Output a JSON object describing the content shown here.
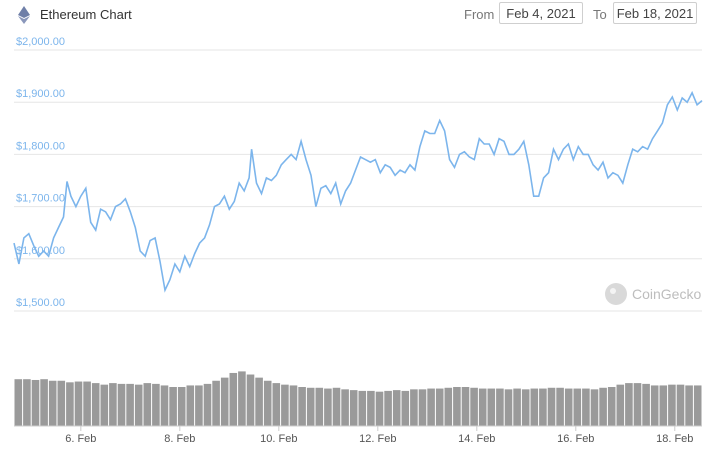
{
  "header": {
    "title": "Ethereum Chart",
    "from_label": "From",
    "from_value": "Feb 4, 2021",
    "to_label": "To",
    "to_value": "Feb 18, 2021",
    "icon": "ethereum-icon"
  },
  "watermark": {
    "text": "CoinGecko",
    "icon": "coingecko-logo"
  },
  "colors": {
    "line": "#7cb5ec",
    "axis_text": "#7cb5ec",
    "grid": "#e6e6e6",
    "volume": "#9a9a9a"
  },
  "chart_data": {
    "type": "line",
    "xlabel": "",
    "ylabel": "",
    "y_ticks": [
      "$1,500.00",
      "$1,600.00",
      "$1,700.00",
      "$1,800.00",
      "$1,900.00",
      "$2,000.00"
    ],
    "y_tick_values": [
      1500,
      1600,
      1700,
      1800,
      1900,
      2000
    ],
    "ylim": [
      1500,
      2000
    ],
    "x_ticks": [
      "6. Feb",
      "8. Feb",
      "10. Feb",
      "12. Feb",
      "14. Feb",
      "16. Feb",
      "18. Feb"
    ],
    "x_tick_values": [
      6,
      8,
      10,
      12,
      14,
      16,
      18
    ],
    "xlim": [
      4.65,
      18.55
    ],
    "grid": true,
    "price": [
      [
        4.65,
        1630
      ],
      [
        4.75,
        1590
      ],
      [
        4.85,
        1640
      ],
      [
        4.95,
        1648
      ],
      [
        5.05,
        1625
      ],
      [
        5.15,
        1605
      ],
      [
        5.25,
        1615
      ],
      [
        5.35,
        1605
      ],
      [
        5.45,
        1640
      ],
      [
        5.55,
        1660
      ],
      [
        5.65,
        1680
      ],
      [
        5.72,
        1748
      ],
      [
        5.8,
        1720
      ],
      [
        5.9,
        1700
      ],
      [
        6.0,
        1720
      ],
      [
        6.1,
        1735
      ],
      [
        6.2,
        1670
      ],
      [
        6.3,
        1655
      ],
      [
        6.4,
        1695
      ],
      [
        6.5,
        1690
      ],
      [
        6.6,
        1675
      ],
      [
        6.7,
        1700
      ],
      [
        6.8,
        1705
      ],
      [
        6.9,
        1715
      ],
      [
        7.0,
        1690
      ],
      [
        7.1,
        1660
      ],
      [
        7.2,
        1615
      ],
      [
        7.3,
        1605
      ],
      [
        7.4,
        1635
      ],
      [
        7.5,
        1640
      ],
      [
        7.6,
        1595
      ],
      [
        7.7,
        1540
      ],
      [
        7.8,
        1560
      ],
      [
        7.9,
        1590
      ],
      [
        8.0,
        1575
      ],
      [
        8.1,
        1605
      ],
      [
        8.2,
        1585
      ],
      [
        8.3,
        1610
      ],
      [
        8.4,
        1630
      ],
      [
        8.5,
        1640
      ],
      [
        8.6,
        1665
      ],
      [
        8.7,
        1700
      ],
      [
        8.8,
        1705
      ],
      [
        8.9,
        1720
      ],
      [
        9.0,
        1695
      ],
      [
        9.1,
        1710
      ],
      [
        9.2,
        1745
      ],
      [
        9.3,
        1730
      ],
      [
        9.4,
        1755
      ],
      [
        9.45,
        1810
      ],
      [
        9.55,
        1745
      ],
      [
        9.65,
        1725
      ],
      [
        9.75,
        1755
      ],
      [
        9.85,
        1750
      ],
      [
        9.95,
        1760
      ],
      [
        10.05,
        1780
      ],
      [
        10.15,
        1790
      ],
      [
        10.25,
        1800
      ],
      [
        10.35,
        1790
      ],
      [
        10.45,
        1825
      ],
      [
        10.55,
        1790
      ],
      [
        10.65,
        1760
      ],
      [
        10.75,
        1700
      ],
      [
        10.85,
        1735
      ],
      [
        10.95,
        1740
      ],
      [
        11.05,
        1725
      ],
      [
        11.15,
        1745
      ],
      [
        11.25,
        1705
      ],
      [
        11.35,
        1730
      ],
      [
        11.45,
        1745
      ],
      [
        11.55,
        1770
      ],
      [
        11.65,
        1795
      ],
      [
        11.75,
        1790
      ],
      [
        11.85,
        1785
      ],
      [
        11.95,
        1790
      ],
      [
        12.05,
        1765
      ],
      [
        12.15,
        1780
      ],
      [
        12.25,
        1775
      ],
      [
        12.35,
        1760
      ],
      [
        12.45,
        1770
      ],
      [
        12.55,
        1765
      ],
      [
        12.65,
        1780
      ],
      [
        12.75,
        1770
      ],
      [
        12.85,
        1815
      ],
      [
        12.95,
        1845
      ],
      [
        13.05,
        1840
      ],
      [
        13.15,
        1840
      ],
      [
        13.25,
        1865
      ],
      [
        13.35,
        1845
      ],
      [
        13.45,
        1790
      ],
      [
        13.55,
        1775
      ],
      [
        13.65,
        1800
      ],
      [
        13.75,
        1805
      ],
      [
        13.85,
        1795
      ],
      [
        13.95,
        1790
      ],
      [
        14.05,
        1830
      ],
      [
        14.15,
        1820
      ],
      [
        14.25,
        1820
      ],
      [
        14.35,
        1800
      ],
      [
        14.45,
        1830
      ],
      [
        14.55,
        1825
      ],
      [
        14.65,
        1800
      ],
      [
        14.75,
        1800
      ],
      [
        14.85,
        1810
      ],
      [
        14.95,
        1825
      ],
      [
        15.05,
        1780
      ],
      [
        15.15,
        1720
      ],
      [
        15.25,
        1720
      ],
      [
        15.35,
        1755
      ],
      [
        15.45,
        1765
      ],
      [
        15.55,
        1810
      ],
      [
        15.65,
        1790
      ],
      [
        15.75,
        1810
      ],
      [
        15.85,
        1820
      ],
      [
        15.95,
        1790
      ],
      [
        16.05,
        1815
      ],
      [
        16.15,
        1800
      ],
      [
        16.25,
        1800
      ],
      [
        16.35,
        1780
      ],
      [
        16.45,
        1770
      ],
      [
        16.55,
        1785
      ],
      [
        16.65,
        1755
      ],
      [
        16.75,
        1765
      ],
      [
        16.85,
        1760
      ],
      [
        16.95,
        1745
      ],
      [
        17.05,
        1780
      ],
      [
        17.15,
        1810
      ],
      [
        17.25,
        1805
      ],
      [
        17.35,
        1815
      ],
      [
        17.45,
        1810
      ],
      [
        17.55,
        1830
      ],
      [
        17.65,
        1845
      ],
      [
        17.75,
        1860
      ],
      [
        17.85,
        1895
      ],
      [
        17.95,
        1910
      ],
      [
        18.05,
        1885
      ],
      [
        18.15,
        1908
      ],
      [
        18.25,
        1900
      ],
      [
        18.35,
        1918
      ],
      [
        18.45,
        1895
      ],
      [
        18.55,
        1903
      ]
    ],
    "volume_levels": [
      0.6,
      0.6,
      0.59,
      0.6,
      0.58,
      0.58,
      0.56,
      0.57,
      0.57,
      0.55,
      0.53,
      0.55,
      0.54,
      0.54,
      0.53,
      0.55,
      0.54,
      0.52,
      0.5,
      0.5,
      0.52,
      0.52,
      0.54,
      0.58,
      0.62,
      0.68,
      0.7,
      0.66,
      0.62,
      0.58,
      0.55,
      0.53,
      0.52,
      0.5,
      0.49,
      0.49,
      0.48,
      0.49,
      0.47,
      0.46,
      0.45,
      0.45,
      0.44,
      0.45,
      0.46,
      0.45,
      0.47,
      0.47,
      0.48,
      0.48,
      0.49,
      0.5,
      0.5,
      0.49,
      0.48,
      0.48,
      0.48,
      0.47,
      0.48,
      0.47,
      0.48,
      0.48,
      0.49,
      0.49,
      0.48,
      0.48,
      0.48,
      0.47,
      0.49,
      0.5,
      0.53,
      0.55,
      0.55,
      0.54,
      0.52,
      0.52,
      0.53,
      0.53,
      0.52,
      0.52
    ],
    "watermark_text": ""
  }
}
